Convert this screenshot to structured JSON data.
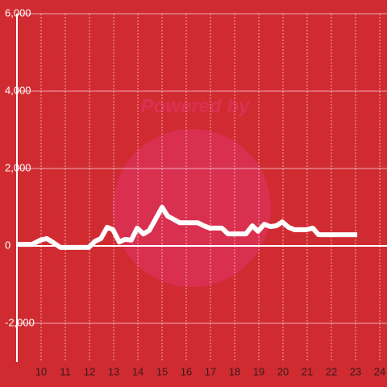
{
  "chart_data": {
    "type": "line",
    "watermark": "Powered by",
    "x": [
      9.0,
      9.63,
      9.97,
      10.23,
      10.47,
      10.8,
      11.97,
      12.23,
      12.47,
      12.73,
      12.97,
      13.23,
      13.47,
      13.73,
      13.97,
      14.23,
      14.47,
      14.73,
      15.0,
      15.23,
      15.47,
      15.73,
      16.47,
      16.73,
      16.97,
      17.23,
      17.47,
      17.73,
      18.47,
      18.73,
      18.97,
      19.23,
      19.47,
      19.73,
      19.97,
      20.23,
      20.47,
      20.97,
      21.23,
      21.47,
      23.07
    ],
    "series": [
      {
        "color": "#ffffff",
        "values": [
          40,
          40,
          150,
          190,
          100,
          -40,
          -40,
          120,
          190,
          480,
          420,
          100,
          170,
          150,
          460,
          310,
          400,
          690,
          1000,
          770,
          690,
          600,
          600,
          520,
          460,
          460,
          460,
          310,
          310,
          520,
          380,
          560,
          500,
          520,
          620,
          480,
          420,
          420,
          460,
          290,
          290
        ]
      }
    ],
    "xlim": [
      9,
      24.3
    ],
    "xticks": [
      10,
      11,
      12,
      13,
      14,
      15,
      16,
      17,
      18,
      19,
      20,
      21,
      22,
      23,
      24
    ],
    "ylim": [
      -3000,
      6000
    ],
    "yticks": [
      {
        "value": -2000,
        "label": "-2,000"
      },
      0,
      {
        "value": 2000,
        "label": "2,000"
      },
      {
        "value": 4000,
        "label": "4,000"
      },
      {
        "value": 6000,
        "label": "6,000"
      }
    ],
    "grid": true
  }
}
